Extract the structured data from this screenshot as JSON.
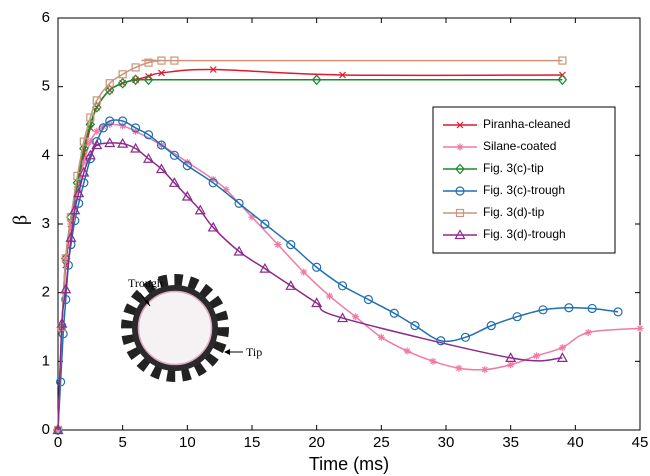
{
  "chart_data": {
    "type": "line",
    "xlabel": "Time (ms)",
    "ylabel": "β",
    "xlim": [
      0,
      45
    ],
    "ylim": [
      0,
      6
    ],
    "xticks": [
      0,
      5,
      10,
      15,
      20,
      25,
      30,
      35,
      40,
      45
    ],
    "yticks": [
      0,
      1,
      2,
      3,
      4,
      5,
      6
    ],
    "legend": "upper right",
    "annotations": [
      "Trough",
      "Tip"
    ],
    "series": [
      {
        "name": "Piranha-cleaned",
        "color": "#e0182e",
        "marker": "x",
        "x": [
          0,
          0.3,
          0.6,
          1,
          1.5,
          2,
          2.5,
          3,
          4,
          5,
          6,
          7,
          8,
          12,
          22,
          39
        ],
        "values": [
          0,
          1.5,
          2.4,
          3.0,
          3.5,
          4.0,
          4.4,
          4.7,
          4.95,
          5.05,
          5.1,
          5.15,
          5.2,
          5.25,
          5.17,
          5.17
        ]
      },
      {
        "name": "Silane-coated",
        "color": "#f07aa6",
        "marker": "asterisk",
        "x": [
          0,
          0.3,
          0.6,
          1,
          1.5,
          2,
          2.5,
          3,
          3.5,
          4,
          5,
          6,
          8,
          10,
          12,
          13,
          15,
          17,
          19,
          21,
          23,
          25,
          27,
          29,
          31,
          33,
          35,
          37,
          39,
          41,
          45
        ],
        "values": [
          0,
          1.5,
          2.5,
          3.0,
          3.5,
          3.9,
          4.2,
          4.35,
          4.42,
          4.45,
          4.43,
          4.35,
          4.15,
          3.9,
          3.65,
          3.5,
          3.1,
          2.7,
          2.3,
          1.95,
          1.65,
          1.35,
          1.15,
          1.0,
          0.9,
          0.88,
          0.95,
          1.08,
          1.2,
          1.42,
          1.48
        ]
      },
      {
        "name": "Fig. 3(c)-tip",
        "color": "#1a8a2e",
        "marker": "diamond",
        "x": [
          0,
          0.3,
          0.6,
          1,
          1.5,
          2,
          2.5,
          3,
          4,
          5,
          6,
          7,
          20,
          39
        ],
        "values": [
          0,
          1.5,
          2.5,
          3.1,
          3.6,
          4.1,
          4.45,
          4.7,
          4.95,
          5.05,
          5.1,
          5.1,
          5.1,
          5.1
        ]
      },
      {
        "name": "Fig. 3(c)-trough",
        "color": "#1f6fb2",
        "marker": "circle",
        "x": [
          0,
          0.2,
          0.4,
          0.6,
          0.8,
          1,
          1.3,
          1.6,
          2,
          2.5,
          3,
          3.5,
          4,
          5,
          6,
          7,
          8,
          9,
          10,
          12,
          14,
          16,
          18,
          20,
          22,
          24,
          26,
          27.6,
          29.6,
          31.5,
          33.5,
          35.5,
          37.5,
          39.5,
          41.3,
          43.3
        ],
        "values": [
          0,
          0.7,
          1.4,
          1.9,
          2.4,
          2.7,
          3.05,
          3.3,
          3.6,
          3.95,
          4.2,
          4.4,
          4.5,
          4.5,
          4.4,
          4.3,
          4.15,
          4.0,
          3.85,
          3.6,
          3.3,
          3.0,
          2.7,
          2.37,
          2.1,
          1.9,
          1.7,
          1.52,
          1.3,
          1.35,
          1.52,
          1.65,
          1.75,
          1.78,
          1.77,
          1.72
        ]
      },
      {
        "name": "Fig. 3(d)-tip",
        "color": "#c8967a",
        "marker": "square",
        "x": [
          0,
          0.3,
          0.6,
          1,
          1.5,
          2,
          2.5,
          3,
          4,
          5,
          6,
          7,
          8,
          9,
          39
        ],
        "values": [
          0,
          1.5,
          2.5,
          3.1,
          3.7,
          4.2,
          4.55,
          4.8,
          5.05,
          5.18,
          5.28,
          5.35,
          5.38,
          5.38,
          5.38
        ]
      },
      {
        "name": "Fig. 3(d)-trough",
        "color": "#8a2a8a",
        "marker": "triangle",
        "x": [
          0,
          0.3,
          0.6,
          1,
          1.3,
          1.6,
          2,
          2.5,
          3,
          4,
          5,
          6,
          7,
          8,
          9,
          10,
          11,
          12,
          14,
          16,
          18,
          20,
          22,
          35,
          39
        ],
        "values": [
          0,
          1.55,
          2.05,
          2.8,
          3.2,
          3.45,
          3.75,
          4.0,
          4.15,
          4.18,
          4.17,
          4.1,
          3.95,
          3.8,
          3.6,
          3.4,
          3.2,
          2.95,
          2.6,
          2.35,
          2.1,
          1.85,
          1.63,
          1.05,
          1.05
        ]
      }
    ]
  }
}
